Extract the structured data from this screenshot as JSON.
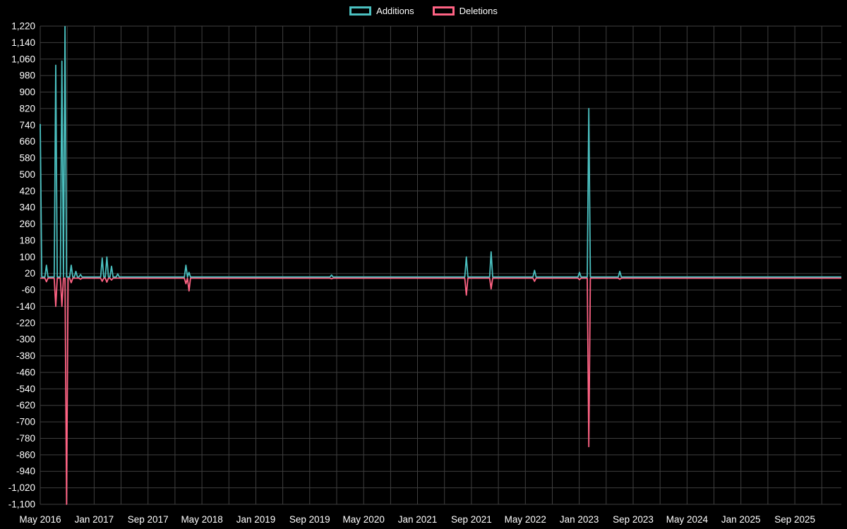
{
  "page": {
    "background": "#000000"
  },
  "colors": {
    "grid": "#3f3f3f",
    "text": "#ffffff",
    "additions": "#4bc0c0",
    "deletions": "#ff6384"
  },
  "legend": {
    "items": [
      {
        "label": "Additions",
        "color": "#4bc0c0"
      },
      {
        "label": "Deletions",
        "color": "#ff6384"
      }
    ]
  },
  "chart_data": {
    "type": "line",
    "title": "",
    "legend_position": "top",
    "grid": true,
    "x_axis": {
      "start": "May 2016",
      "tick_labels": [
        "May 2016",
        "Jan 2017",
        "Sep 2017",
        "May 2018",
        "Jan 2019",
        "Sep 2019",
        "May 2020",
        "Jan 2021",
        "Sep 2021",
        "May 2022",
        "Jan 2023",
        "Sep 2023",
        "May 2024",
        "Jan 2025",
        "Sep 2025"
      ],
      "tick_interval_months": 8,
      "grid_interval_months": 4,
      "weeks_per_month": 4.348,
      "total_weeks": 517
    },
    "y_axis": {
      "min": -1100,
      "max": 1220,
      "tick_step": 80,
      "tick_labels": [
        "1,220",
        "1,140",
        "1,060",
        "980",
        "900",
        "820",
        "740",
        "660",
        "580",
        "500",
        "420",
        "340",
        "260",
        "180",
        "100",
        "20",
        "-60",
        "-140",
        "-220",
        "-300",
        "-380",
        "-460",
        "-540",
        "-620",
        "-700",
        "-780",
        "-860",
        "-940",
        "-1,020",
        "-1,100"
      ]
    },
    "series": [
      {
        "name": "Additions",
        "color": "#4bc0c0",
        "baseline": 3,
        "spikes": [
          [
            0,
            745
          ],
          [
            4,
            60
          ],
          [
            10,
            1030
          ],
          [
            14,
            1050
          ],
          [
            16,
            1218
          ],
          [
            20,
            60
          ],
          [
            23,
            30
          ],
          [
            26,
            15
          ],
          [
            40,
            95
          ],
          [
            43,
            100
          ],
          [
            46,
            55
          ],
          [
            50,
            18
          ],
          [
            94,
            60
          ],
          [
            96,
            25
          ],
          [
            188,
            12
          ],
          [
            275,
            100
          ],
          [
            291,
            125
          ],
          [
            319,
            35
          ],
          [
            348,
            25
          ],
          [
            354,
            820
          ],
          [
            374,
            30
          ]
        ]
      },
      {
        "name": "Deletions",
        "color": "#ff6384",
        "baseline": -3,
        "spikes": [
          [
            4,
            -20
          ],
          [
            10,
            -140
          ],
          [
            14,
            -140
          ],
          [
            17,
            -1100
          ],
          [
            20,
            -25
          ],
          [
            26,
            -8
          ],
          [
            40,
            -18
          ],
          [
            43,
            -22
          ],
          [
            46,
            -12
          ],
          [
            94,
            -30
          ],
          [
            96,
            -65
          ],
          [
            188,
            -6
          ],
          [
            275,
            -85
          ],
          [
            291,
            -55
          ],
          [
            319,
            -18
          ],
          [
            348,
            -10
          ],
          [
            354,
            -820
          ],
          [
            374,
            -8
          ]
        ]
      }
    ]
  }
}
